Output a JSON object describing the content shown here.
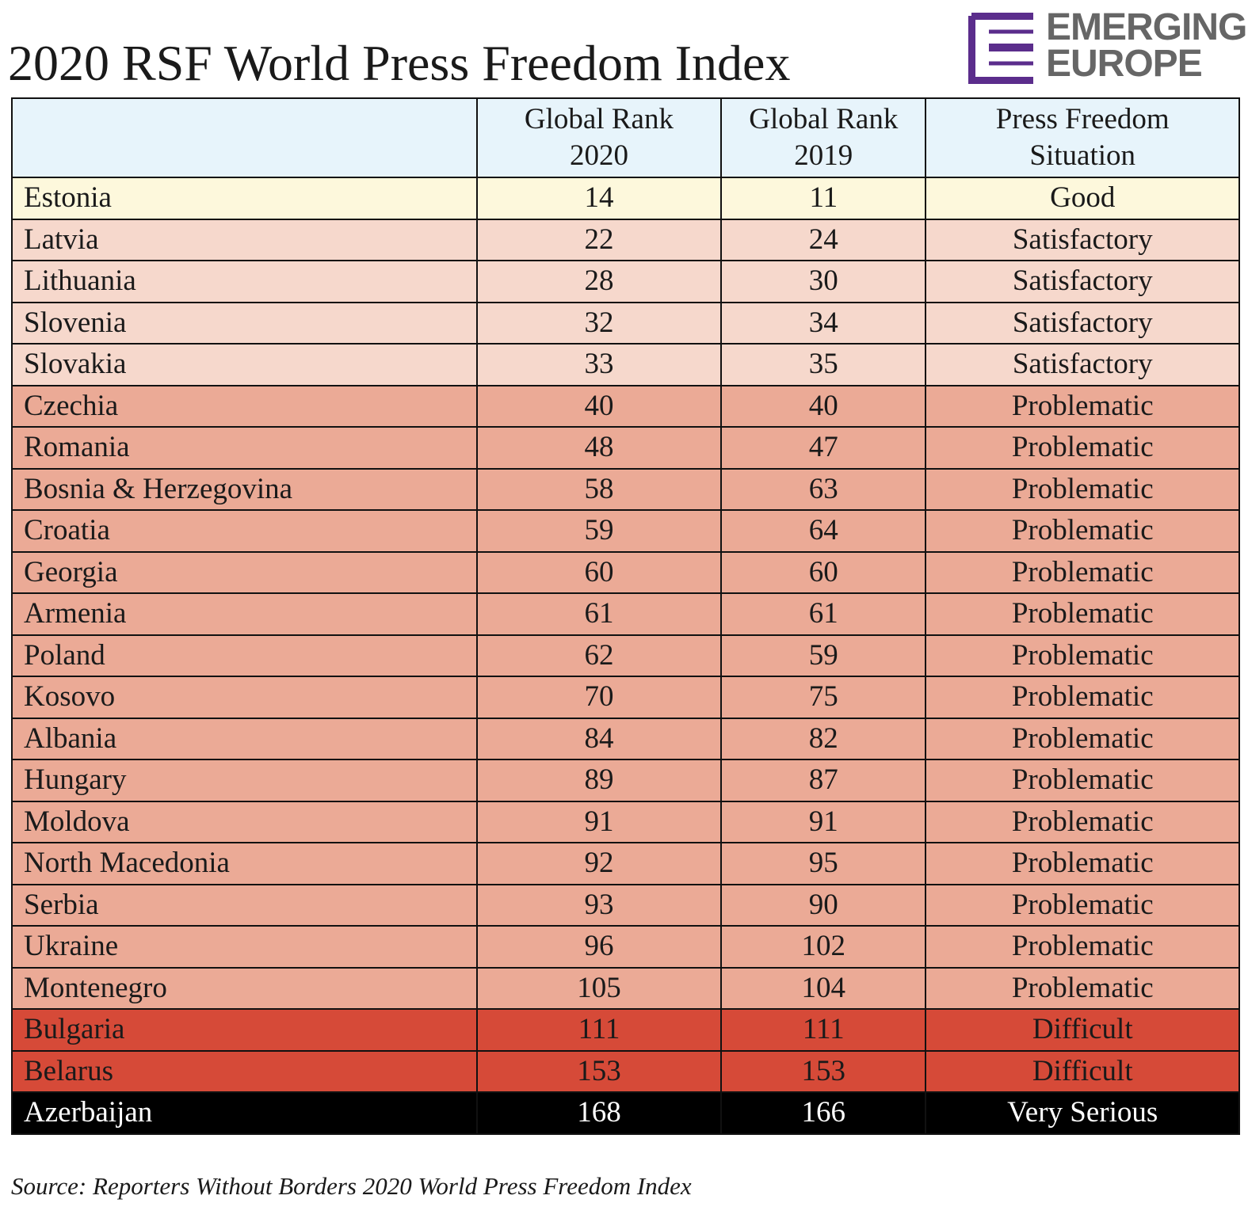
{
  "title": "2020 RSF World Press Freedom Index",
  "logo": {
    "line1": "EMERGING",
    "line2": "EUROPE",
    "mark_color": "#5b2d8c",
    "text_color": "#666666"
  },
  "colors": {
    "header": "#e7f4fb",
    "Good": "#fdf8dc",
    "Satisfactory": "#f6d8cc",
    "Problematic": "#ebaa96",
    "Difficult": "#d64a38",
    "Very Serious": "#000000"
  },
  "source": "Source: Reporters Without Borders 2020 World Press Freedom Index",
  "chart_data": {
    "type": "table",
    "title": "2020 RSF World Press Freedom Index",
    "columns": [
      "",
      "Global Rank 2020",
      "Global Rank 2019",
      "Press Freedom Situation"
    ],
    "header_lines": [
      [
        "",
        ""
      ],
      [
        "Global Rank",
        "2020"
      ],
      [
        "Global Rank",
        "2019"
      ],
      [
        "Press Freedom",
        "Situation"
      ]
    ],
    "rows": [
      {
        "country": "Estonia",
        "rank_2020": 14,
        "rank_2019": 11,
        "situation": "Good"
      },
      {
        "country": "Latvia",
        "rank_2020": 22,
        "rank_2019": 24,
        "situation": "Satisfactory"
      },
      {
        "country": "Lithuania",
        "rank_2020": 28,
        "rank_2019": 30,
        "situation": "Satisfactory"
      },
      {
        "country": "Slovenia",
        "rank_2020": 32,
        "rank_2019": 34,
        "situation": "Satisfactory"
      },
      {
        "country": "Slovakia",
        "rank_2020": 33,
        "rank_2019": 35,
        "situation": "Satisfactory"
      },
      {
        "country": "Czechia",
        "rank_2020": 40,
        "rank_2019": 40,
        "situation": "Problematic"
      },
      {
        "country": "Romania",
        "rank_2020": 48,
        "rank_2019": 47,
        "situation": "Problematic"
      },
      {
        "country": "Bosnia & Herzegovina",
        "rank_2020": 58,
        "rank_2019": 63,
        "situation": "Problematic"
      },
      {
        "country": "Croatia",
        "rank_2020": 59,
        "rank_2019": 64,
        "situation": "Problematic"
      },
      {
        "country": "Georgia",
        "rank_2020": 60,
        "rank_2019": 60,
        "situation": "Problematic"
      },
      {
        "country": "Armenia",
        "rank_2020": 61,
        "rank_2019": 61,
        "situation": "Problematic"
      },
      {
        "country": "Poland",
        "rank_2020": 62,
        "rank_2019": 59,
        "situation": "Problematic"
      },
      {
        "country": "Kosovo",
        "rank_2020": 70,
        "rank_2019": 75,
        "situation": "Problematic"
      },
      {
        "country": "Albania",
        "rank_2020": 84,
        "rank_2019": 82,
        "situation": "Problematic"
      },
      {
        "country": "Hungary",
        "rank_2020": 89,
        "rank_2019": 87,
        "situation": "Problematic"
      },
      {
        "country": "Moldova",
        "rank_2020": 91,
        "rank_2019": 91,
        "situation": "Problematic"
      },
      {
        "country": "North Macedonia",
        "rank_2020": 92,
        "rank_2019": 95,
        "situation": "Problematic"
      },
      {
        "country": "Serbia",
        "rank_2020": 93,
        "rank_2019": 90,
        "situation": "Problematic"
      },
      {
        "country": "Ukraine",
        "rank_2020": 96,
        "rank_2019": 102,
        "situation": "Problematic"
      },
      {
        "country": "Montenegro",
        "rank_2020": 105,
        "rank_2019": 104,
        "situation": "Problematic"
      },
      {
        "country": "Bulgaria",
        "rank_2020": 111,
        "rank_2019": 111,
        "situation": "Difficult"
      },
      {
        "country": "Belarus",
        "rank_2020": 153,
        "rank_2019": 153,
        "situation": "Difficult"
      },
      {
        "country": "Azerbaijan",
        "rank_2020": 168,
        "rank_2019": 166,
        "situation": "Very Serious"
      }
    ]
  }
}
